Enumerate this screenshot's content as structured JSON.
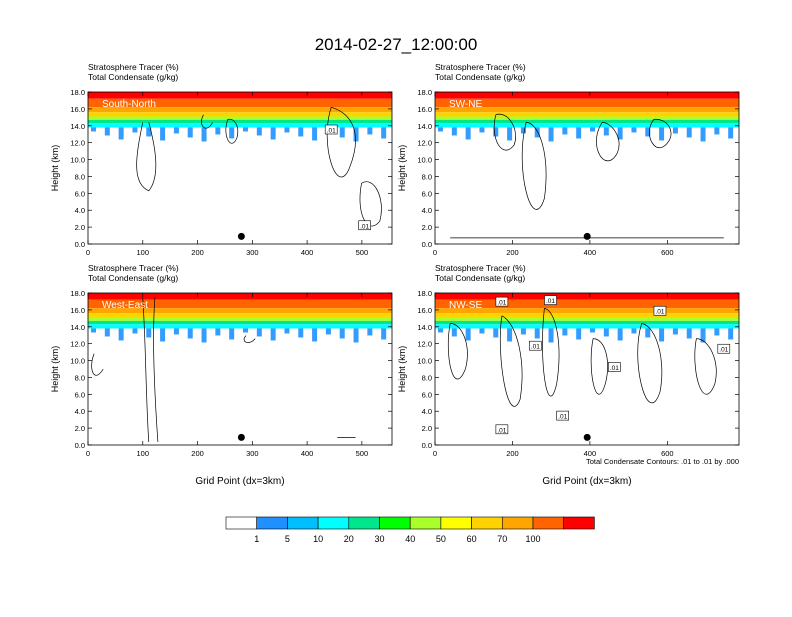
{
  "page": {
    "title": "2014-02-27_12:00:00"
  },
  "colors": {
    "scale": [
      "#ffffff",
      "#1e90ff",
      "#00bfff",
      "#00ffff",
      "#00e68c",
      "#00ff00",
      "#aaff2b",
      "#ffff00",
      "#ffd200",
      "#ffa500",
      "#ff6400",
      "#ff0000"
    ]
  },
  "colorbar": {
    "labels": [
      "1",
      "5",
      "10",
      "20",
      "30",
      "40",
      "50",
      "60",
      "70",
      "100"
    ]
  },
  "footnote": "Total Condensate Contours: .01 to .01 by .000",
  "chart_data": [
    {
      "type": "heatmap",
      "name": "South-North",
      "label": "South-North",
      "title_line1": "Stratosphere Tracer   (%)",
      "title_line2": "Total Condensate   (g/kg)",
      "xlabel": "",
      "ylabel": "Height (km)",
      "xlim": [
        0,
        555
      ],
      "ylim": [
        0,
        18
      ],
      "xticks": [
        0,
        100,
        200,
        300,
        400,
        500
      ],
      "xtick_labels": [
        "0",
        "100",
        "200",
        "300",
        "400",
        "500"
      ],
      "yticks": [
        0,
        2,
        4,
        6,
        8,
        10,
        12,
        14,
        16,
        18
      ],
      "ytick_labels": [
        "0.0",
        "2.0",
        "4.0",
        "6.0",
        "8.0",
        "10.0",
        "12.0",
        "14.0",
        "16.0",
        "18.0"
      ],
      "marker_x": 280,
      "contour_labels": [
        ".01",
        ".01"
      ],
      "tracer_bands_km": [
        [
          17.2,
          100
        ],
        [
          16.2,
          70
        ],
        [
          15.6,
          60
        ],
        [
          15.1,
          50
        ],
        [
          14.7,
          30
        ],
        [
          14.3,
          10
        ],
        [
          13.8,
          5
        ]
      ]
    },
    {
      "type": "heatmap",
      "name": "SW-NE",
      "label": "SW-NE",
      "title_line1": "Stratosphere Tracer   (%)",
      "title_line2": "Total Condensate   (g/kg)",
      "xlabel": "",
      "ylabel": "Height (km)",
      "xlim": [
        0,
        785
      ],
      "ylim": [
        0,
        18
      ],
      "xticks": [
        0,
        200,
        400,
        600
      ],
      "xtick_labels": [
        "0",
        "200",
        "400",
        "600"
      ],
      "yticks": [
        0,
        2,
        4,
        6,
        8,
        10,
        12,
        14,
        16,
        18
      ],
      "ytick_labels": [
        "0.0",
        "2.0",
        "4.0",
        "6.0",
        "8.0",
        "10.0",
        "12.0",
        "14.0",
        "16.0",
        "18.0"
      ],
      "marker_x": 393,
      "contour_labels": [],
      "tracer_bands_km": [
        [
          17.2,
          100
        ],
        [
          16.2,
          70
        ],
        [
          15.6,
          60
        ],
        [
          15.1,
          50
        ],
        [
          14.7,
          30
        ],
        [
          14.3,
          10
        ],
        [
          13.8,
          5
        ]
      ]
    },
    {
      "type": "heatmap",
      "name": "West-East",
      "label": "West-East",
      "title_line1": "Stratosphere Tracer   (%)",
      "title_line2": "Total Condensate   (g/kg)",
      "xlabel": "Grid Point (dx=3km)",
      "ylabel": "Height (km)",
      "xlim": [
        0,
        555
      ],
      "ylim": [
        0,
        18
      ],
      "xticks": [
        0,
        100,
        200,
        300,
        400,
        500
      ],
      "xtick_labels": [
        "0",
        "100",
        "200",
        "300",
        "400",
        "500"
      ],
      "yticks": [
        0,
        2,
        4,
        6,
        8,
        10,
        12,
        14,
        16,
        18
      ],
      "ytick_labels": [
        "0.0",
        "2.0",
        "4.0",
        "6.0",
        "8.0",
        "10.0",
        "12.0",
        "14.0",
        "16.0",
        "18.0"
      ],
      "marker_x": 280,
      "contour_labels": [],
      "tracer_bands_km": [
        [
          17.2,
          100
        ],
        [
          16.2,
          70
        ],
        [
          15.6,
          60
        ],
        [
          15.1,
          50
        ],
        [
          14.7,
          30
        ],
        [
          14.3,
          10
        ],
        [
          13.8,
          5
        ]
      ]
    },
    {
      "type": "heatmap",
      "name": "NW-SE",
      "label": "NW-SE",
      "title_line1": "Stratosphere Tracer   (%)",
      "title_line2": "Total Condensate   (g/kg)",
      "xlabel": "Grid Point (dx=3km)",
      "ylabel": "Height (km)",
      "xlim": [
        0,
        785
      ],
      "ylim": [
        0,
        18
      ],
      "xticks": [
        0,
        200,
        400,
        600
      ],
      "xtick_labels": [
        "0",
        "200",
        "400",
        "600"
      ],
      "yticks": [
        0,
        2,
        4,
        6,
        8,
        10,
        12,
        14,
        16,
        18
      ],
      "ytick_labels": [
        "0.0",
        "2.0",
        "4.0",
        "6.0",
        "8.0",
        "10.0",
        "12.0",
        "14.0",
        "16.0",
        "18.0"
      ],
      "marker_x": 393,
      "contour_labels": [
        ".01",
        ".01",
        ".01",
        ".01",
        ".01",
        ".01",
        ".01",
        ".01"
      ],
      "tracer_bands_km": [
        [
          17.2,
          100
        ],
        [
          16.2,
          70
        ],
        [
          15.6,
          60
        ],
        [
          15.1,
          50
        ],
        [
          14.7,
          30
        ],
        [
          14.3,
          10
        ],
        [
          13.8,
          5
        ]
      ]
    }
  ]
}
